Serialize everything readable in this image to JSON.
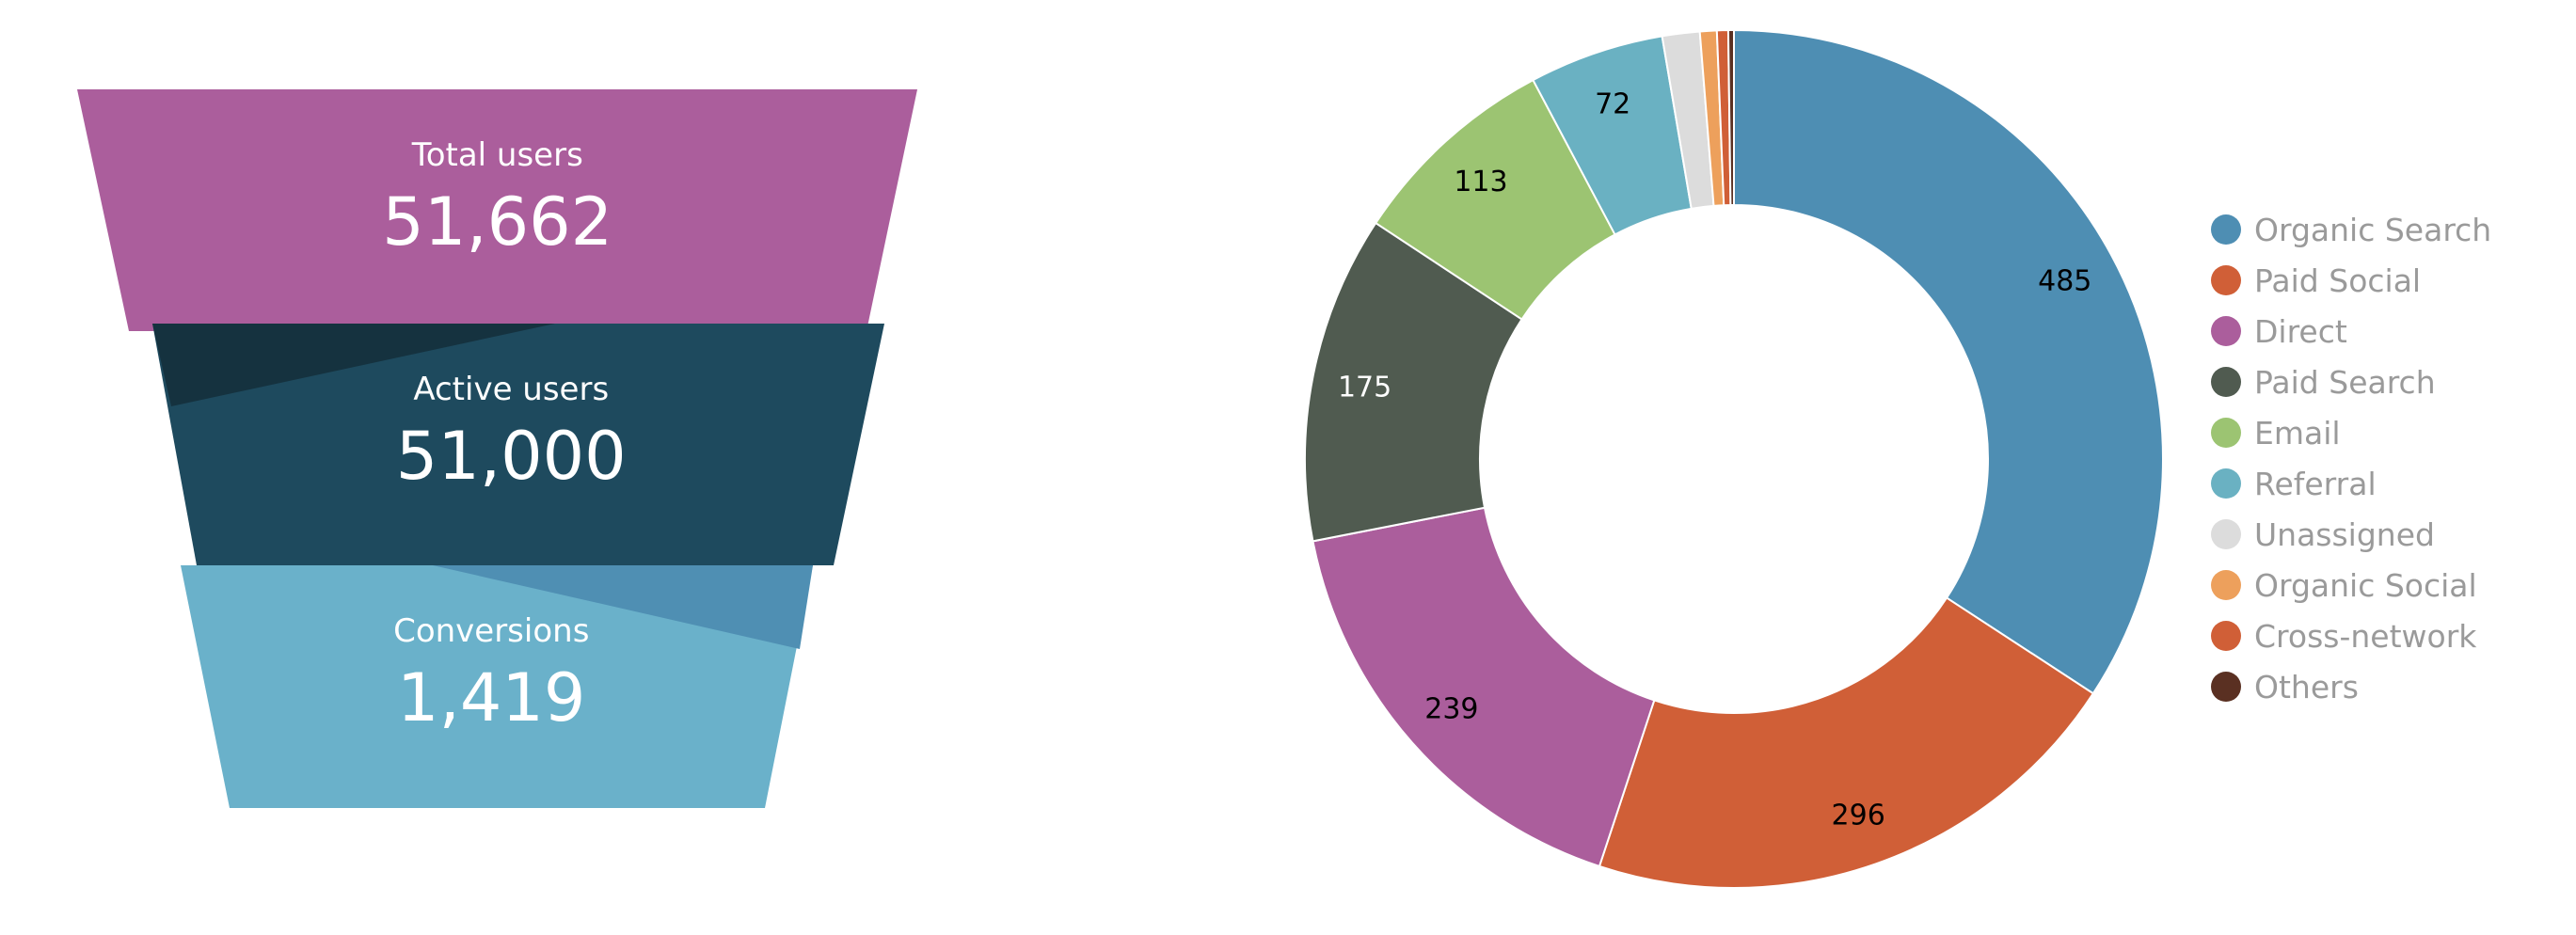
{
  "chart_data": [
    {
      "type": "funnel",
      "stages": [
        {
          "label": "Total users",
          "value_text": "51,662",
          "value": 51662,
          "color": "#ab5e9c",
          "shadow": "#8e4b82"
        },
        {
          "label": "Active users",
          "value_text": "51,000",
          "value": 51000,
          "color": "#1e4a5e",
          "shadow": "#15323f"
        },
        {
          "label": "Conversions",
          "value_text": "1,419",
          "value": 1419,
          "color": "#6ab1ca",
          "shadow": "#4f8fb3"
        }
      ]
    },
    {
      "type": "donut",
      "slices": [
        {
          "name": "Organic Search",
          "value": 485,
          "label": "485",
          "color": "#4e8eb3",
          "label_color": "#000000"
        },
        {
          "name": "Paid Social",
          "value": 296,
          "label": "296",
          "color": "#d05f37",
          "label_color": "#000000"
        },
        {
          "name": "Direct",
          "value": 239,
          "label": "239",
          "color": "#ab5e9c",
          "label_color": "#000000"
        },
        {
          "name": "Paid Search",
          "value": 175,
          "label": "175",
          "color": "#505b50",
          "label_color": "#ffffff"
        },
        {
          "name": "Email",
          "value": 113,
          "label": "113",
          "color": "#9cc472",
          "label_color": "#000000"
        },
        {
          "name": "Referral",
          "value": 72,
          "label": "72",
          "color": "#6ab1c2",
          "label_color": "#000000"
        },
        {
          "name": "Unassigned",
          "value": 20,
          "label": "",
          "color": "#dcdcdc",
          "label_color": "#000000"
        },
        {
          "name": "Organic Social",
          "value": 9,
          "label": "",
          "color": "#eda05c",
          "label_color": "#000000"
        },
        {
          "name": "Cross-network",
          "value": 6,
          "label": "",
          "color": "#d05f37",
          "label_color": "#000000"
        },
        {
          "name": "Others",
          "value": 3,
          "label": "",
          "color": "#5a3022",
          "label_color": "#000000"
        }
      ],
      "legend_position": "right",
      "legend_text_color": "#9a9a9a"
    }
  ]
}
